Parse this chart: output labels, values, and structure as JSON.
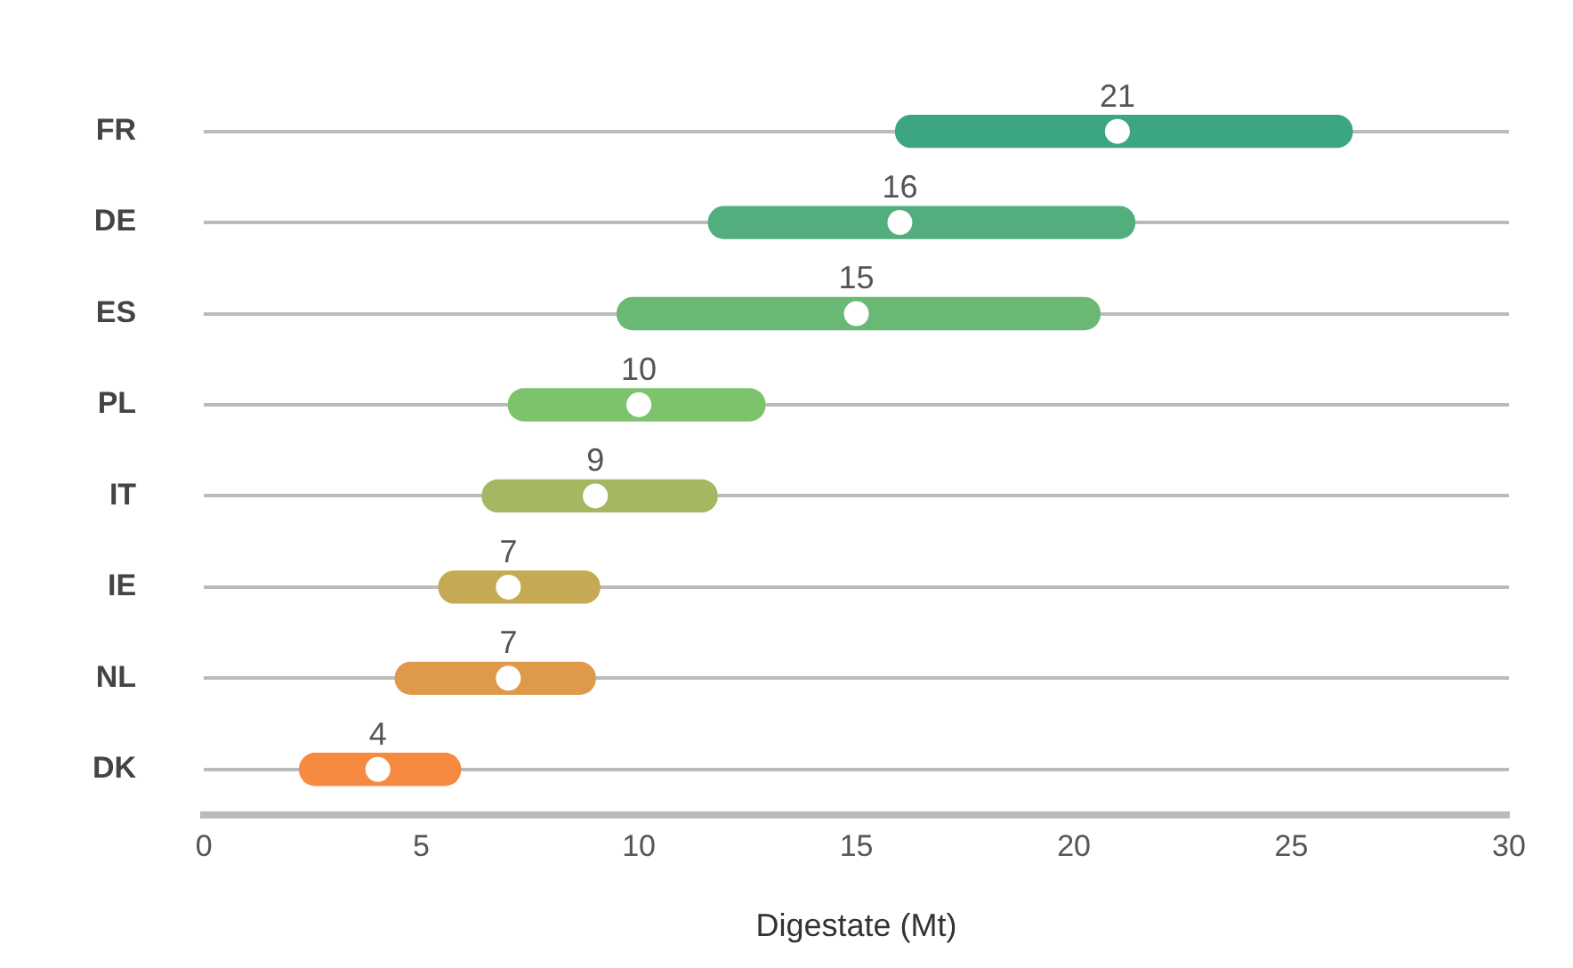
{
  "chart_data": {
    "type": "bar",
    "orientation": "horizontal",
    "xlabel": "Digestate (Mt)",
    "categories": [
      "FR",
      "DE",
      "ES",
      "PL",
      "IT",
      "IE",
      "NL",
      "DK"
    ],
    "series": [
      {
        "base": [
          15.9,
          11.6,
          9.5,
          7.0,
          6.4,
          5.4,
          4.4,
          2.2
        ],
        "values": [
          10.5,
          9.8,
          11.1,
          5.9,
          5.4,
          3.7,
          4.6,
          3.7
        ],
        "colors": [
          "#3ca584",
          "#52ae7c",
          "#69b974",
          "#7dc36b",
          "#a3b860",
          "#c5a955",
          "#de9a4a",
          "#f58a40"
        ]
      },
      {
        "type": "scatter",
        "x": [
          "FR",
          "DE",
          "ES",
          "PL",
          "IT",
          "IE",
          "NL",
          "DK"
        ],
        "values": [
          21,
          16,
          15,
          10,
          9,
          7,
          7,
          4
        ],
        "color": "#ffffff",
        "data_labels": true
      }
    ],
    "xlim": [
      0,
      30
    ],
    "xticks": [
      0,
      5,
      10,
      15,
      20,
      25,
      30
    ],
    "grid": "y",
    "legend": false,
    "marker": "circle"
  }
}
